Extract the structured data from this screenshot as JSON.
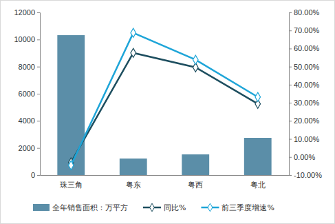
{
  "chart_data": {
    "type": "bar",
    "categories": [
      "珠三角",
      "粤东",
      "粤西",
      "粤北"
    ],
    "series": [
      {
        "name": "全年销售面积：万平方",
        "type": "bar",
        "color": "#5b8ea8",
        "values": [
          10320,
          1220,
          1525,
          2745
        ]
      },
      {
        "name": "同比%",
        "type": "line",
        "axis": "y2",
        "color": "#1d4e5f",
        "marker": "diamond",
        "values": [
          -3,
          57.6,
          49.6,
          29.4
        ]
      },
      {
        "name": "前三季度增速%",
        "type": "line",
        "axis": "y2",
        "color": "#1ea5d8",
        "marker": "diamond",
        "values": [
          -4.6,
          68.7,
          53.8,
          33.2
        ]
      }
    ],
    "ylim": [
      0,
      12000
    ],
    "yticks": [
      0,
      2000,
      4000,
      6000,
      8000,
      10000,
      12000
    ],
    "y2lim": [
      -10,
      80
    ],
    "y2ticks": [
      {
        "value": -10,
        "label": "-10.00%"
      },
      {
        "value": 0,
        "label": "0.00%"
      },
      {
        "value": 10,
        "label": "10.00%"
      },
      {
        "value": 20,
        "label": "20.00%"
      },
      {
        "value": 30,
        "label": "30.00%"
      },
      {
        "value": 40,
        "label": "40.00%"
      },
      {
        "value": 50,
        "label": "50.00%"
      },
      {
        "value": 60,
        "label": "60.00%"
      },
      {
        "value": 70,
        "label": "70.00%"
      },
      {
        "value": 80,
        "label": "80.00%"
      }
    ],
    "grid": false,
    "legend": "bottom"
  }
}
